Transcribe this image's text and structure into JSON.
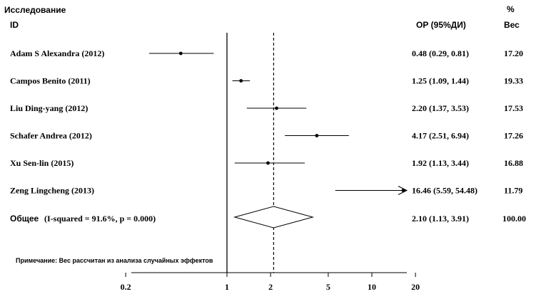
{
  "header": {
    "study_col": "Исследование",
    "id_col": "ID",
    "or_col": "ОР (95%ДИ)",
    "weight_col_line1": "%",
    "weight_col_line2": "Вес"
  },
  "footnote": "Примечание: Вес рассчитан из анализа случайных эффектов",
  "chart_data": {
    "type": "forest",
    "x_scale": "log",
    "reference_line": 1,
    "pooled_line": 2.1,
    "x_ticks": [
      "0.2",
      "1",
      "2",
      "5",
      "10",
      "20"
    ],
    "studies": [
      {
        "name": "Adam S Alexandra  (2012)",
        "or": 0.48,
        "lo": 0.29,
        "hi": 0.81,
        "ci_text": "0.48 (0.29, 0.81)",
        "weight": "17.20",
        "arrow": false
      },
      {
        "name": "Campos Benito  (2011)",
        "or": 1.25,
        "lo": 1.09,
        "hi": 1.44,
        "ci_text": "1.25 (1.09, 1.44)",
        "weight": "19.33",
        "arrow": false
      },
      {
        "name": "Liu Ding-yang  (2012)",
        "or": 2.2,
        "lo": 1.37,
        "hi": 3.53,
        "ci_text": "2.20 (1.37, 3.53)",
        "weight": "17.53",
        "arrow": false
      },
      {
        "name": "Schafer Andrea  (2012)",
        "or": 4.17,
        "lo": 2.51,
        "hi": 6.94,
        "ci_text": "4.17 (2.51, 6.94)",
        "weight": "17.26",
        "arrow": false
      },
      {
        "name": "Xu Sen-lin  (2015)",
        "or": 1.92,
        "lo": 1.13,
        "hi": 3.44,
        "ci_text": "1.92 (1.13, 3.44)",
        "weight": "16.88",
        "arrow": false
      },
      {
        "name": "Zeng Lingcheng  (2013)",
        "or": 16.46,
        "lo": 5.59,
        "hi": 54.48,
        "ci_text": "16.46 (5.59, 54.48)",
        "weight": "11.79",
        "arrow": true
      }
    ],
    "overall": {
      "label_word": "Общее",
      "label_stats": "(I-squared = 91.6%, p = 0.000)",
      "or": 2.1,
      "lo": 1.13,
      "hi": 3.91,
      "ci_text": "2.10 (1.13, 3.91)",
      "weight": "100.00"
    }
  }
}
